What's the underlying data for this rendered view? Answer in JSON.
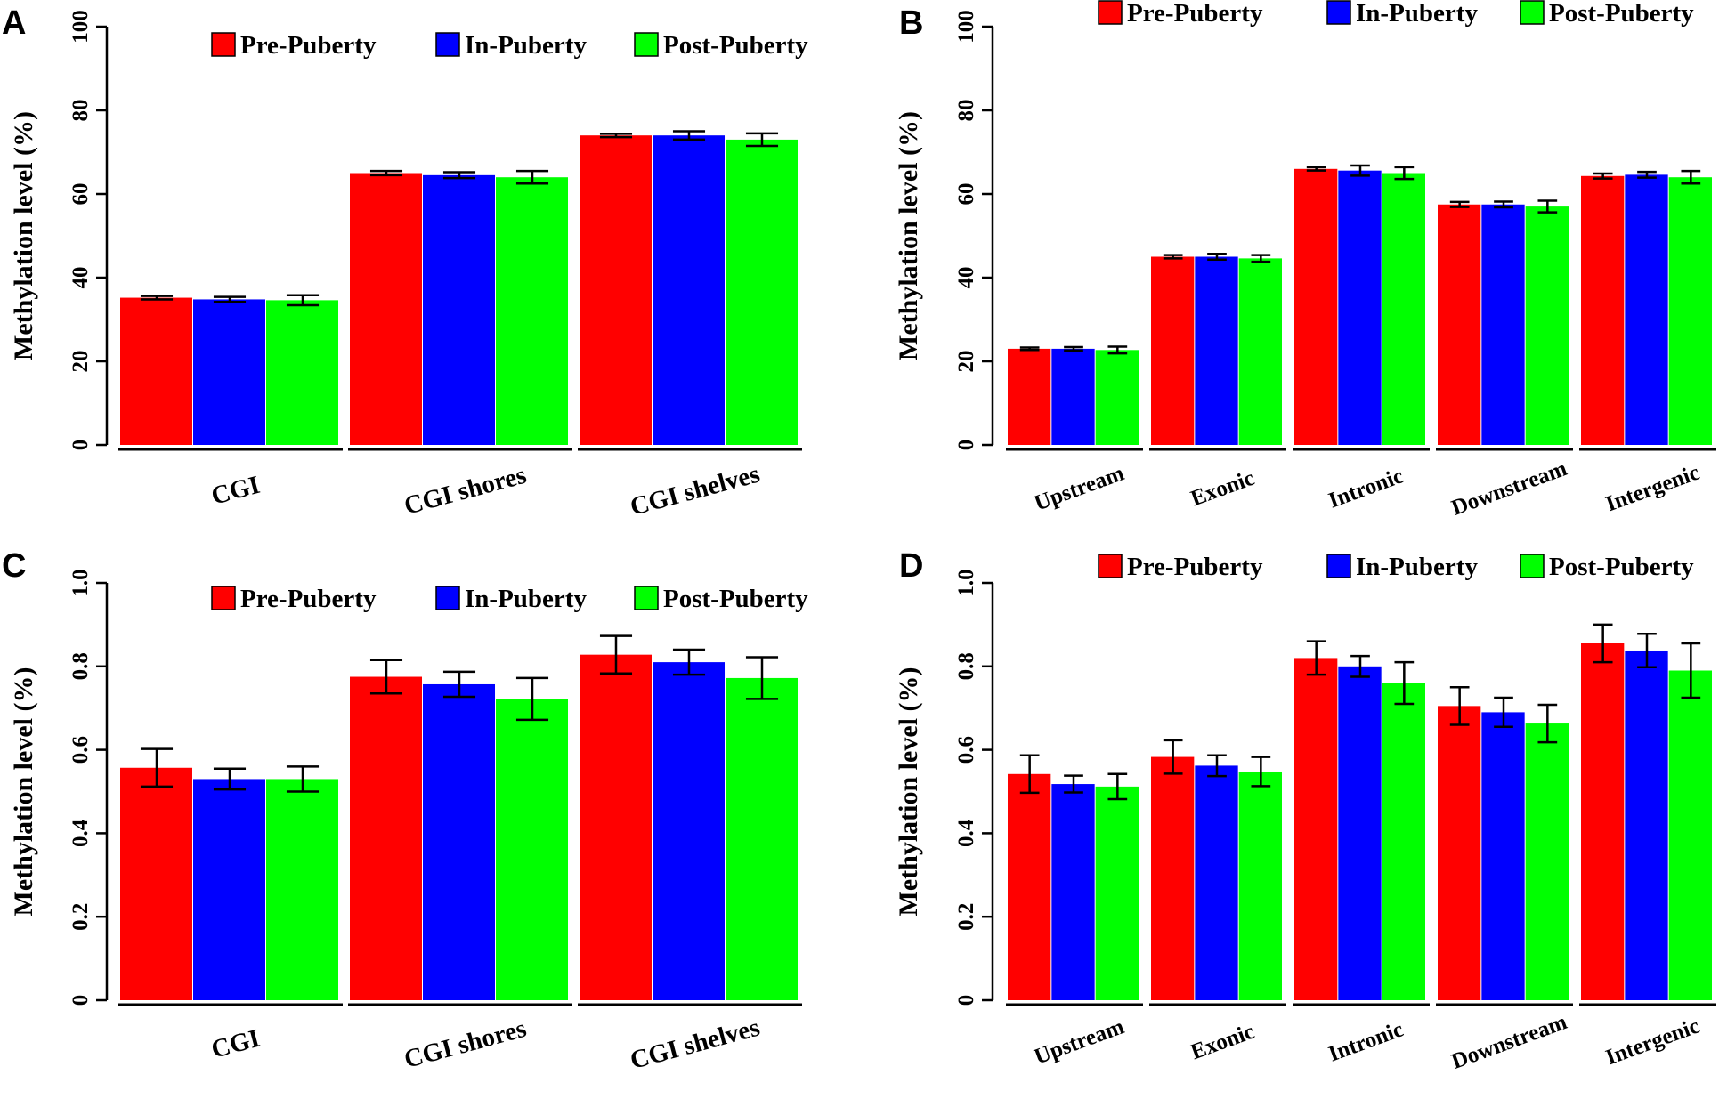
{
  "colors": {
    "pre": "#ff0000",
    "in": "#0000ff",
    "post": "#00ff00",
    "axis": "#000000"
  },
  "legend": [
    "Pre-Puberty",
    "In-Puberty",
    "Post-Puberty"
  ],
  "chart_data": [
    {
      "panel": "A",
      "type": "bar",
      "ylabel": "Methylation level (%)",
      "ylim": [
        0,
        100
      ],
      "yticks": [
        "0",
        "20",
        "40",
        "60",
        "80",
        "100"
      ],
      "categories": [
        "CGI",
        "CGI shores",
        "CGI shelves"
      ],
      "series": [
        {
          "name": "Pre-Puberty",
          "values": [
            35.2,
            65.0,
            74.0
          ],
          "errors": [
            0.4,
            0.5,
            0.4
          ]
        },
        {
          "name": "In-Puberty",
          "values": [
            34.8,
            64.5,
            74.0
          ],
          "errors": [
            0.6,
            0.7,
            1.0
          ]
        },
        {
          "name": "Post-Puberty",
          "values": [
            34.6,
            64.0,
            73.0
          ],
          "errors": [
            1.2,
            1.5,
            1.5
          ]
        }
      ]
    },
    {
      "panel": "B",
      "type": "bar",
      "ylabel": "Methylation level (%)",
      "ylim": [
        0,
        100
      ],
      "yticks": [
        "0",
        "20",
        "40",
        "60",
        "80",
        "100"
      ],
      "categories": [
        "Upstream",
        "Exonic",
        "Intronic",
        "Downstream",
        "Intergenic"
      ],
      "series": [
        {
          "name": "Pre-Puberty",
          "values": [
            23.0,
            45.0,
            66.0,
            57.5,
            64.3
          ],
          "errors": [
            0.3,
            0.4,
            0.4,
            0.6,
            0.6
          ]
        },
        {
          "name": "In-Puberty",
          "values": [
            23.0,
            45.0,
            65.6,
            57.5,
            64.6
          ],
          "errors": [
            0.4,
            0.7,
            1.2,
            0.7,
            0.7
          ]
        },
        {
          "name": "Post-Puberty",
          "values": [
            22.7,
            44.6,
            65.0,
            57.0,
            64.0
          ],
          "errors": [
            0.8,
            0.8,
            1.4,
            1.4,
            1.5
          ]
        }
      ]
    },
    {
      "panel": "C",
      "type": "bar",
      "ylabel": "Methylation level (%)",
      "ylim": [
        0,
        1
      ],
      "yticks": [
        "0",
        "0.2",
        "0.4",
        "0.6",
        "0.8",
        "1.0"
      ],
      "categories": [
        "CGI",
        "CGI shores",
        "CGI shelves"
      ],
      "series": [
        {
          "name": "Pre-Puberty",
          "values": [
            0.557,
            0.775,
            0.828
          ],
          "errors": [
            0.045,
            0.04,
            0.045
          ]
        },
        {
          "name": "In-Puberty",
          "values": [
            0.53,
            0.757,
            0.81
          ],
          "errors": [
            0.025,
            0.03,
            0.03
          ]
        },
        {
          "name": "Post-Puberty",
          "values": [
            0.53,
            0.722,
            0.772
          ],
          "errors": [
            0.03,
            0.05,
            0.05
          ]
        }
      ]
    },
    {
      "panel": "D",
      "type": "bar",
      "ylabel": "Methylation level (%)",
      "ylim": [
        0,
        1
      ],
      "yticks": [
        "0",
        "0.2",
        "0.4",
        "0.6",
        "0.8",
        "1.0"
      ],
      "categories": [
        "Upstream",
        "Exonic",
        "Intronic",
        "Downstream",
        "Intergenic"
      ],
      "series": [
        {
          "name": "Pre-Puberty",
          "values": [
            0.542,
            0.583,
            0.82,
            0.705,
            0.855
          ],
          "errors": [
            0.045,
            0.04,
            0.04,
            0.045,
            0.045
          ]
        },
        {
          "name": "In-Puberty",
          "values": [
            0.518,
            0.562,
            0.8,
            0.69,
            0.838
          ],
          "errors": [
            0.02,
            0.025,
            0.025,
            0.035,
            0.04
          ]
        },
        {
          "name": "Post-Puberty",
          "values": [
            0.512,
            0.548,
            0.76,
            0.663,
            0.79
          ],
          "errors": [
            0.03,
            0.035,
            0.05,
            0.045,
            0.065
          ]
        }
      ]
    }
  ]
}
